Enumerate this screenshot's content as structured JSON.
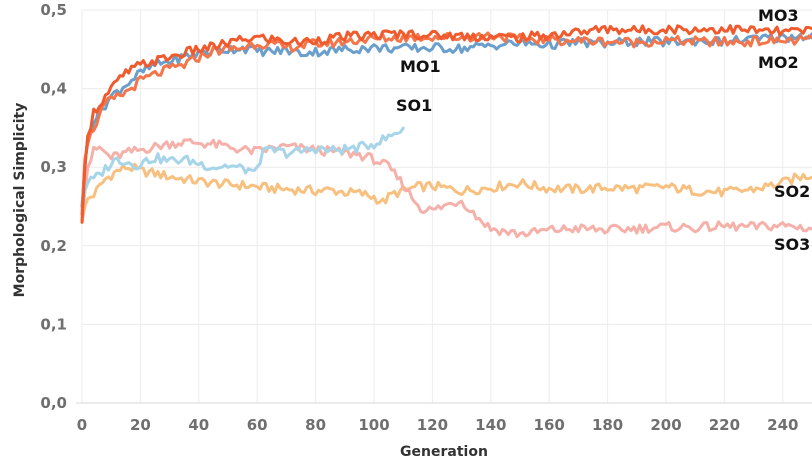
{
  "chart_data": {
    "type": "line",
    "title": "",
    "xlabel": "Generation",
    "ylabel": "Morphological Simplicity",
    "xlim": [
      0,
      250
    ],
    "ylim": [
      0,
      0.5
    ],
    "x_ticks": [
      0,
      20,
      40,
      60,
      80,
      100,
      120,
      140,
      160,
      180,
      200,
      220,
      240
    ],
    "x_tick_labels": [
      "0",
      "20",
      "40",
      "60",
      "80",
      "100",
      "120",
      "140",
      "160",
      "180",
      "200",
      "220",
      "240"
    ],
    "y_ticks": [
      0,
      0.1,
      0.2,
      0.3,
      0.4,
      0.5
    ],
    "y_tick_labels": [
      "0,0",
      "0,1",
      "0,2",
      "0,3",
      "0,4",
      "0,5"
    ],
    "grid": true,
    "series": [
      {
        "name": "SO2",
        "color": "#f7c07f",
        "x": [
          0,
          1,
          2,
          4,
          6,
          8,
          10,
          12,
          15,
          18,
          20,
          25,
          30,
          35,
          40,
          45,
          50,
          55,
          60,
          65,
          70,
          75,
          80,
          85,
          90,
          95,
          100,
          103,
          106,
          110,
          115,
          120,
          125,
          130,
          135,
          140,
          145,
          150,
          155,
          160,
          170,
          180,
          190,
          200,
          210,
          220,
          225,
          230,
          235,
          240,
          245,
          250
        ],
        "values": [
          0.23,
          0.25,
          0.26,
          0.265,
          0.275,
          0.285,
          0.29,
          0.295,
          0.3,
          0.298,
          0.295,
          0.292,
          0.288,
          0.285,
          0.282,
          0.28,
          0.278,
          0.277,
          0.275,
          0.273,
          0.272,
          0.271,
          0.27,
          0.271,
          0.268,
          0.267,
          0.262,
          0.255,
          0.265,
          0.27,
          0.275,
          0.276,
          0.273,
          0.27,
          0.272,
          0.274,
          0.277,
          0.28,
          0.276,
          0.273,
          0.272,
          0.274,
          0.273,
          0.275,
          0.27,
          0.268,
          0.27,
          0.272,
          0.276,
          0.28,
          0.287,
          0.29
        ]
      },
      {
        "name": "SO3",
        "color": "#f5b1a9",
        "x": [
          0,
          1,
          2,
          4,
          6,
          8,
          10,
          15,
          20,
          25,
          30,
          35,
          40,
          45,
          50,
          55,
          60,
          65,
          70,
          75,
          80,
          85,
          90,
          95,
          100,
          105,
          110,
          113,
          116,
          120,
          125,
          130,
          135,
          140,
          145,
          150,
          155,
          160,
          170,
          180,
          190,
          200,
          210,
          220,
          230,
          240,
          250
        ],
        "values": [
          0.23,
          0.27,
          0.3,
          0.32,
          0.325,
          0.318,
          0.312,
          0.318,
          0.322,
          0.326,
          0.33,
          0.332,
          0.331,
          0.329,
          0.326,
          0.322,
          0.32,
          0.324,
          0.326,
          0.324,
          0.322,
          0.32,
          0.318,
          0.316,
          0.31,
          0.3,
          0.278,
          0.262,
          0.248,
          0.245,
          0.252,
          0.258,
          0.238,
          0.222,
          0.218,
          0.215,
          0.217,
          0.22,
          0.222,
          0.22,
          0.222,
          0.224,
          0.223,
          0.225,
          0.224,
          0.226,
          0.222
        ]
      },
      {
        "name": "SO1",
        "color": "#a6d4e9",
        "x": [
          0,
          1,
          2,
          4,
          6,
          8,
          10,
          12,
          15,
          18,
          20,
          25,
          30,
          35,
          40,
          45,
          50,
          55,
          58,
          59,
          60,
          62,
          65,
          70,
          75,
          80,
          85,
          90,
          95,
          100,
          103,
          105,
          107,
          110
        ],
        "values": [
          0.24,
          0.27,
          0.28,
          0.285,
          0.29,
          0.298,
          0.305,
          0.31,
          0.308,
          0.302,
          0.305,
          0.312,
          0.308,
          0.31,
          0.305,
          0.3,
          0.302,
          0.298,
          0.296,
          0.29,
          0.302,
          0.318,
          0.322,
          0.318,
          0.32,
          0.324,
          0.321,
          0.323,
          0.325,
          0.33,
          0.335,
          0.338,
          0.342,
          0.35
        ]
      },
      {
        "name": "MO1",
        "color": "#6a9fcb",
        "x": [
          0,
          1,
          2,
          4,
          6,
          8,
          10,
          15,
          20,
          25,
          30,
          35,
          40,
          45,
          50,
          55,
          60,
          65,
          70,
          75,
          80,
          85,
          90,
          95,
          100,
          110,
          120,
          130,
          140,
          150,
          160,
          170,
          180,
          190,
          200,
          210,
          220,
          230,
          240,
          250
        ],
        "values": [
          0.25,
          0.3,
          0.34,
          0.36,
          0.37,
          0.38,
          0.39,
          0.405,
          0.42,
          0.43,
          0.435,
          0.44,
          0.445,
          0.448,
          0.45,
          0.452,
          0.448,
          0.447,
          0.449,
          0.445,
          0.447,
          0.448,
          0.45,
          0.451,
          0.452,
          0.451,
          0.452,
          0.451,
          0.455,
          0.458,
          0.456,
          0.459,
          0.457,
          0.46,
          0.459,
          0.461,
          0.46,
          0.463,
          0.465,
          0.468
        ]
      },
      {
        "name": "MO2",
        "color": "#f5754a",
        "x": [
          0,
          1,
          2,
          4,
          6,
          8,
          10,
          15,
          20,
          25,
          30,
          35,
          40,
          45,
          50,
          55,
          60,
          65,
          70,
          75,
          80,
          85,
          90,
          95,
          100,
          110,
          120,
          130,
          140,
          150,
          160,
          170,
          180,
          190,
          200,
          210,
          220,
          230,
          240,
          250
        ],
        "values": [
          0.24,
          0.31,
          0.33,
          0.35,
          0.365,
          0.38,
          0.385,
          0.395,
          0.41,
          0.418,
          0.425,
          0.43,
          0.44,
          0.448,
          0.45,
          0.452,
          0.458,
          0.456,
          0.452,
          0.455,
          0.457,
          0.458,
          0.46,
          0.462,
          0.463,
          0.465,
          0.466,
          0.465,
          0.468,
          0.463,
          0.462,
          0.461,
          0.46,
          0.459,
          0.461,
          0.46,
          0.459,
          0.46,
          0.461,
          0.462
        ]
      },
      {
        "name": "MO3",
        "color": "#f05a2c",
        "x": [
          0,
          1,
          2,
          4,
          6,
          8,
          10,
          15,
          20,
          25,
          30,
          35,
          40,
          45,
          50,
          55,
          60,
          65,
          70,
          75,
          80,
          85,
          90,
          95,
          100,
          110,
          120,
          130,
          140,
          150,
          160,
          170,
          180,
          190,
          200,
          210,
          220,
          230,
          240,
          250
        ],
        "values": [
          0.23,
          0.3,
          0.34,
          0.37,
          0.38,
          0.39,
          0.4,
          0.42,
          0.43,
          0.435,
          0.44,
          0.445,
          0.45,
          0.453,
          0.458,
          0.462,
          0.465,
          0.463,
          0.46,
          0.459,
          0.462,
          0.464,
          0.466,
          0.467,
          0.468,
          0.47,
          0.468,
          0.467,
          0.466,
          0.465,
          0.468,
          0.472,
          0.476,
          0.474,
          0.476,
          0.475,
          0.476,
          0.474,
          0.472,
          0.474
        ]
      }
    ],
    "annotations": [
      {
        "text": "MO3",
        "series": "MO3",
        "x": 250,
        "y": 0.474
      },
      {
        "text": "MO1",
        "series": "MO1",
        "x": 103,
        "y": 0.45
      },
      {
        "text": "MO2",
        "series": "MO2",
        "x": 250,
        "y": 0.462
      },
      {
        "text": "SO1",
        "series": "SO1",
        "x": 110,
        "y": 0.35
      },
      {
        "text": "SO2",
        "series": "SO2",
        "x": 250,
        "y": 0.29
      },
      {
        "text": "SO3",
        "series": "SO3",
        "x": 250,
        "y": 0.222
      }
    ]
  }
}
